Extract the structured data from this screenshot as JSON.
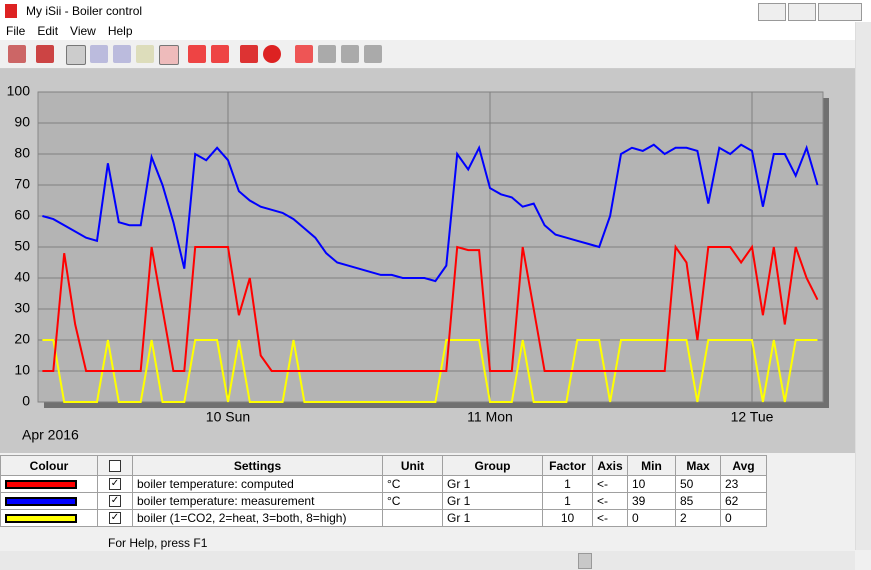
{
  "window": {
    "title": "My iSii - Boiler control"
  },
  "menu": [
    "File",
    "Edit",
    "View",
    "Help"
  ],
  "chart_data": {
    "type": "line",
    "xlabel": "Apr 2016",
    "categories": [
      null,
      null,
      null,
      null,
      null,
      null,
      null,
      null,
      null,
      null,
      null,
      null,
      null,
      null,
      null,
      null,
      null,
      "10 Sun",
      null,
      null,
      null,
      null,
      null,
      null,
      null,
      null,
      null,
      null,
      null,
      null,
      null,
      null,
      null,
      null,
      null,
      null,
      null,
      null,
      null,
      null,
      null,
      "11 Mon",
      null,
      null,
      null,
      null,
      null,
      null,
      null,
      null,
      null,
      null,
      null,
      null,
      null,
      null,
      null,
      null,
      null,
      null,
      null,
      null,
      null,
      null,
      null,
      "12 Tue",
      null,
      null,
      null,
      null,
      null,
      null
    ],
    "series": [
      {
        "name": "boiler temperature: computed",
        "color": "#ff0000",
        "values": [
          10,
          10,
          48,
          25,
          10,
          10,
          10,
          10,
          10,
          10,
          50,
          30,
          10,
          10,
          50,
          50,
          50,
          50,
          28,
          40,
          15,
          10,
          10,
          10,
          10,
          10,
          10,
          10,
          10,
          10,
          10,
          10,
          10,
          10,
          10,
          10,
          10,
          10,
          50,
          49,
          49,
          10,
          10,
          10,
          50,
          30,
          10,
          10,
          10,
          10,
          10,
          10,
          10,
          10,
          10,
          10,
          10,
          10,
          50,
          45,
          20,
          50,
          50,
          50,
          45,
          50,
          28,
          50,
          25,
          50,
          40,
          33
        ]
      },
      {
        "name": "boiler temperature: measurement",
        "color": "#0000ff",
        "values": [
          60,
          59,
          57,
          55,
          53,
          52,
          77,
          58,
          57,
          57,
          79,
          70,
          58,
          43,
          80,
          78,
          82,
          78,
          68,
          65,
          63,
          62,
          61,
          59,
          56,
          53,
          48,
          45,
          44,
          43,
          42,
          41,
          41,
          40,
          40,
          40,
          39,
          44,
          80,
          75,
          82,
          69,
          67,
          66,
          63,
          64,
          57,
          54,
          53,
          52,
          51,
          50,
          60,
          80,
          82,
          81,
          83,
          80,
          82,
          82,
          81,
          64,
          82,
          80,
          83,
          81,
          63,
          80,
          80,
          73,
          82,
          70
        ]
      },
      {
        "name": "boiler (1=CO2, 2=heat, 3=both, 8=high)",
        "color": "#ffff00",
        "values": [
          20,
          20,
          0,
          0,
          0,
          0,
          20,
          0,
          0,
          0,
          20,
          0,
          0,
          0,
          20,
          20,
          20,
          0,
          20,
          0,
          0,
          0,
          0,
          20,
          0,
          0,
          0,
          0,
          0,
          0,
          0,
          0,
          0,
          0,
          0,
          0,
          0,
          20,
          20,
          20,
          20,
          0,
          0,
          0,
          20,
          0,
          0,
          0,
          0,
          20,
          20,
          20,
          0,
          20,
          20,
          20,
          20,
          20,
          20,
          20,
          0,
          20,
          20,
          20,
          20,
          20,
          0,
          20,
          0,
          20,
          20,
          20
        ]
      }
    ],
    "ylim": [
      0,
      100
    ],
    "yticks": [
      0,
      10,
      20,
      30,
      40,
      50,
      60,
      70,
      80,
      90,
      100
    ],
    "grid": true
  },
  "table": {
    "columns": [
      "Colour",
      "Settings",
      "Unit",
      "Group",
      "Factor",
      "Axis",
      "Min",
      "Max",
      "Avg"
    ],
    "rows": [
      {
        "unit": "°C",
        "group": "Gr 1",
        "factor": 1,
        "axis": "<-",
        "min": 10,
        "max": 50,
        "avg": 23
      },
      {
        "unit": "°C",
        "group": "Gr 1",
        "factor": 1,
        "axis": "<-",
        "min": 39,
        "max": 85,
        "avg": 62
      },
      {
        "group": "Gr 1",
        "factor": 10,
        "axis": "<-",
        "min": 0,
        "max": 2,
        "avg": 0
      }
    ]
  },
  "status": "For Help, press F1"
}
